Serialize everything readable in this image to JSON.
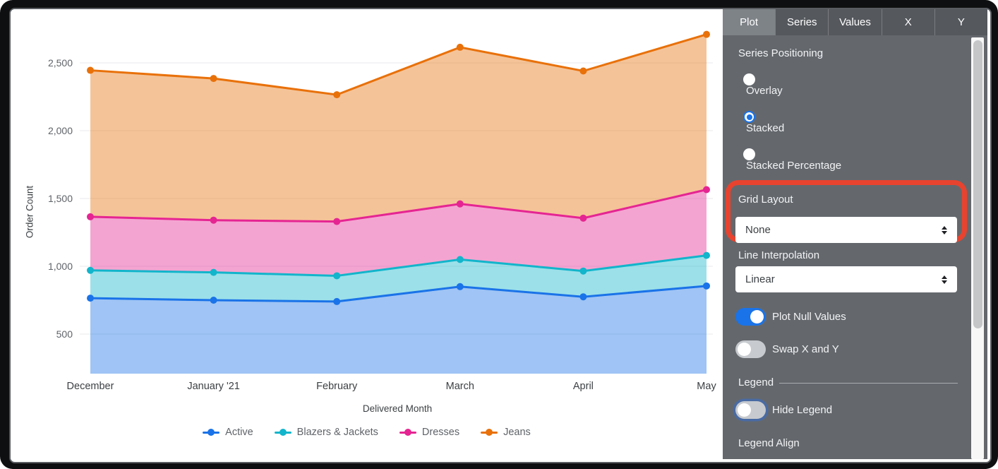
{
  "chart_data": {
    "type": "area",
    "stacked": true,
    "title": "",
    "xlabel": "Delivered Month",
    "ylabel": "Order Count",
    "categories": [
      "December",
      "January '21",
      "February",
      "March",
      "April",
      "May"
    ],
    "series": [
      {
        "name": "Active",
        "color": "#1a73e8",
        "values": [
          765,
          750,
          740,
          850,
          775,
          855
        ]
      },
      {
        "name": "Blazers & Jackets",
        "color": "#12b5cb",
        "values": [
          205,
          205,
          190,
          200,
          190,
          225
        ]
      },
      {
        "name": "Dresses",
        "color": "#e52592",
        "values": [
          395,
          385,
          400,
          410,
          390,
          485
        ]
      },
      {
        "name": "Jeans",
        "color": "#e8710a",
        "values": [
          1080,
          1045,
          935,
          1155,
          1085,
          1145
        ]
      }
    ],
    "cumulative_line_values": {
      "Active": [
        765,
        750,
        740,
        850,
        775,
        855
      ],
      "Blazers & Jackets": [
        970,
        955,
        930,
        1050,
        965,
        1080
      ],
      "Dresses": [
        1365,
        1340,
        1330,
        1460,
        1355,
        1565
      ],
      "Jeans": [
        2445,
        2385,
        2265,
        2615,
        2440,
        2710
      ]
    },
    "y_ticks": [
      500,
      1000,
      1500,
      2000,
      2500
    ],
    "grid": true,
    "legend_position": "bottom",
    "gridline_color": "#e8eaed",
    "fill_opacity": 0.42
  },
  "panel": {
    "tabs": [
      {
        "label": "Plot",
        "active": true
      },
      {
        "label": "Series",
        "active": false
      },
      {
        "label": "Values",
        "active": false
      },
      {
        "label": "X",
        "active": false
      },
      {
        "label": "Y",
        "active": false
      }
    ],
    "series_positioning": {
      "label": "Series Positioning",
      "options": [
        {
          "label": "Overlay",
          "selected": false
        },
        {
          "label": "Stacked",
          "selected": true
        },
        {
          "label": "Stacked Percentage",
          "selected": false
        }
      ]
    },
    "grid_layout": {
      "label": "Grid Layout",
      "value": "None"
    },
    "line_interpolation": {
      "label": "Line Interpolation",
      "value": "Linear"
    },
    "toggles": {
      "plot_null": {
        "label": "Plot Null Values",
        "on": true
      },
      "swap_xy": {
        "label": "Swap X and Y",
        "on": false
      },
      "hide_legend": {
        "label": "Hide Legend",
        "on": false
      }
    },
    "legend_section_label": "Legend",
    "legend_align_label": "Legend Align"
  },
  "annotation": {
    "shape": "rounded-rectangle",
    "color": "#e8432e",
    "highlights": "Grid Layout"
  },
  "colors": {
    "panel_bg": "#64686d",
    "tabbar_bg": "#55585d",
    "active_tab_bg": "#7e8388",
    "accent_blue": "#1a73e8"
  }
}
